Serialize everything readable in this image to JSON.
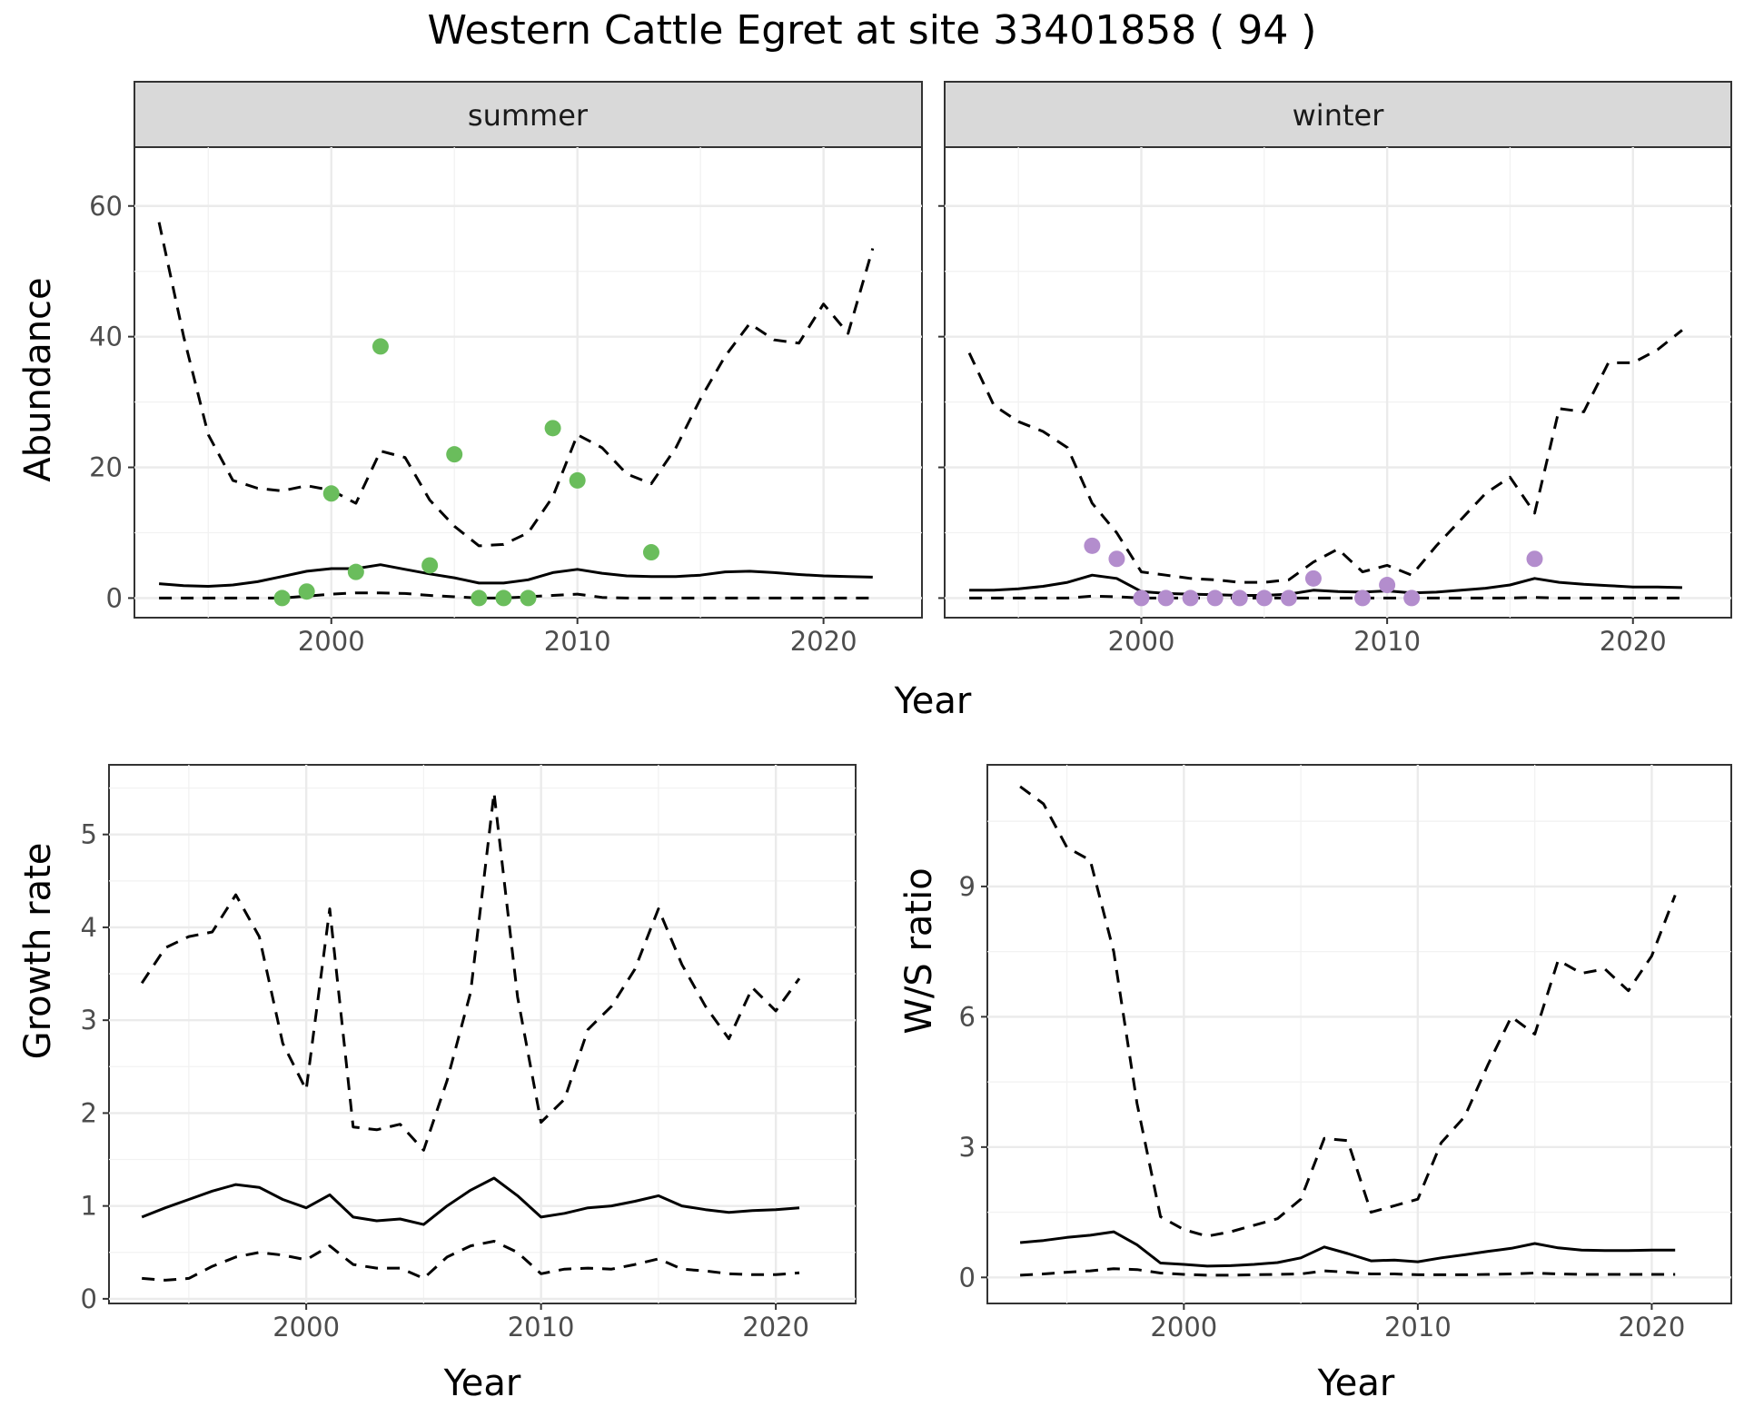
{
  "title": "Western Cattle Egret at site 33401858 ( 94 )",
  "colors": {
    "summer_points": "#6abd5c",
    "winter_points": "#b38dcd",
    "lines": "#000000"
  },
  "chart_data": [
    {
      "type": "line",
      "facet": "summer",
      "xlabel": "Year",
      "ylabel": "Abundance",
      "xlim": [
        1992,
        2024
      ],
      "ylim": [
        -3,
        69
      ],
      "xticks": [
        2000,
        2010,
        2020
      ],
      "yticks": [
        0,
        20,
        40,
        60
      ],
      "grid": true,
      "x": [
        1993,
        1994,
        1995,
        1996,
        1997,
        1998,
        1999,
        2000,
        2001,
        2002,
        2003,
        2004,
        2005,
        2006,
        2007,
        2008,
        2009,
        2010,
        2011,
        2012,
        2013,
        2014,
        2015,
        2016,
        2017,
        2018,
        2019,
        2020,
        2021,
        2022
      ],
      "series": [
        {
          "style": "dashed",
          "values": [
            57.5,
            40,
            25,
            18,
            16.8,
            16.4,
            17.2,
            16.5,
            14.5,
            22.5,
            21.5,
            15,
            11,
            8,
            8.2,
            10,
            15.5,
            25,
            23,
            19,
            17.5,
            23,
            30.5,
            37,
            42,
            39.5,
            39,
            45,
            40.5,
            53.5
          ]
        },
        {
          "style": "solid",
          "values": [
            2.2,
            1.9,
            1.8,
            2,
            2.5,
            3.3,
            4.1,
            4.5,
            4.5,
            5.1,
            4.4,
            3.7,
            3.1,
            2.3,
            2.3,
            2.8,
            3.9,
            4.4,
            3.8,
            3.4,
            3.3,
            3.3,
            3.5,
            4,
            4.1,
            3.9,
            3.6,
            3.4,
            3.3,
            3.2
          ]
        },
        {
          "style": "dashed",
          "values": [
            0,
            0,
            0,
            0,
            0,
            0,
            0.3,
            0.6,
            0.8,
            0.8,
            0.7,
            0.4,
            0.2,
            0,
            0,
            0.2,
            0.4,
            0.6,
            0.1,
            0,
            0,
            0,
            0,
            0,
            0,
            0,
            0,
            0,
            0,
            0
          ]
        }
      ],
      "points": {
        "x": [
          1998,
          1999,
          2000,
          2001,
          2002,
          2004,
          2005,
          2006,
          2007,
          2008,
          2009,
          2010,
          2013
        ],
        "y": [
          0,
          1,
          16,
          4,
          38.5,
          5,
          22,
          0,
          0,
          0,
          26,
          18,
          7
        ]
      }
    },
    {
      "type": "line",
      "facet": "winter",
      "xlabel": "Year",
      "ylabel": "Abundance",
      "xlim": [
        1992,
        2024
      ],
      "ylim": [
        -3,
        69
      ],
      "xticks": [
        2000,
        2010,
        2020
      ],
      "yticks": [
        0,
        20,
        40,
        60
      ],
      "grid": true,
      "x": [
        1993,
        1994,
        1995,
        1996,
        1997,
        1998,
        1999,
        2000,
        2001,
        2002,
        2003,
        2004,
        2005,
        2006,
        2007,
        2008,
        2009,
        2010,
        2011,
        2012,
        2013,
        2014,
        2015,
        2016,
        2017,
        2018,
        2019,
        2020,
        2021,
        2022
      ],
      "series": [
        {
          "style": "dashed",
          "values": [
            37.5,
            29.5,
            27,
            25.5,
            23,
            14.5,
            10,
            4,
            3.5,
            3,
            2.8,
            2.4,
            2.4,
            2.8,
            5.5,
            7.5,
            4,
            5,
            3.5,
            8,
            12,
            16,
            18.5,
            13,
            29,
            28.5,
            36,
            36,
            38,
            41
          ]
        },
        {
          "style": "solid",
          "values": [
            1.2,
            1.2,
            1.4,
            1.8,
            2.4,
            3.5,
            3,
            1,
            0.7,
            0.6,
            0.5,
            0.4,
            0.4,
            0.6,
            1.2,
            1,
            0.9,
            1.1,
            0.8,
            0.9,
            1.2,
            1.5,
            2,
            3,
            2.4,
            2.1,
            1.9,
            1.7,
            1.7,
            1.6
          ]
        },
        {
          "style": "dashed",
          "values": [
            0,
            0,
            0,
            0,
            0,
            0.3,
            0.2,
            0,
            0,
            0,
            0,
            0,
            0,
            0,
            0,
            0,
            0,
            0,
            0,
            0,
            0,
            0,
            0,
            0.1,
            0,
            0,
            0,
            0,
            0,
            0
          ]
        }
      ],
      "points": {
        "x": [
          1998,
          1999,
          2000,
          2001,
          2002,
          2003,
          2004,
          2005,
          2006,
          2007,
          2009,
          2010,
          2011,
          2016
        ],
        "y": [
          8,
          6,
          0,
          0,
          0,
          0,
          0,
          0,
          0,
          3,
          0,
          2,
          0,
          6
        ]
      }
    },
    {
      "type": "line",
      "xlabel": "Year",
      "ylabel": "Growth rate",
      "xlim": [
        1991.6,
        2023.4
      ],
      "ylim": [
        -0.05,
        5.75
      ],
      "xticks": [
        2000,
        2010,
        2020
      ],
      "yticks": [
        0,
        1,
        2,
        3,
        4,
        5
      ],
      "grid": true,
      "x": [
        1993,
        1994,
        1995,
        1996,
        1997,
        1998,
        1999,
        2000,
        2001,
        2002,
        2003,
        2004,
        2005,
        2006,
        2007,
        2008,
        2009,
        2010,
        2011,
        2012,
        2013,
        2014,
        2015,
        2016,
        2017,
        2018,
        2019,
        2020,
        2021
      ],
      "series": [
        {
          "style": "dashed",
          "values": [
            3.4,
            3.78,
            3.9,
            3.95,
            4.35,
            3.9,
            2.75,
            2.25,
            4.2,
            1.85,
            1.82,
            1.88,
            1.6,
            2.35,
            3.3,
            5.45,
            3.25,
            1.9,
            2.15,
            2.9,
            3.15,
            3.55,
            4.2,
            3.6,
            3.15,
            2.8,
            3.35,
            3.1,
            3.45
          ]
        },
        {
          "style": "solid",
          "values": [
            0.88,
            0.98,
            1.07,
            1.16,
            1.23,
            1.2,
            1.07,
            0.98,
            1.12,
            0.88,
            0.84,
            0.86,
            0.8,
            1,
            1.17,
            1.3,
            1.11,
            0.88,
            0.92,
            0.98,
            1,
            1.05,
            1.11,
            1,
            0.96,
            0.93,
            0.95,
            0.96,
            0.98
          ]
        },
        {
          "style": "dashed",
          "values": [
            0.22,
            0.2,
            0.22,
            0.35,
            0.45,
            0.5,
            0.47,
            0.42,
            0.57,
            0.37,
            0.33,
            0.33,
            0.22,
            0.45,
            0.57,
            0.62,
            0.5,
            0.27,
            0.32,
            0.33,
            0.32,
            0.37,
            0.43,
            0.32,
            0.3,
            0.27,
            0.26,
            0.26,
            0.28
          ]
        }
      ]
    },
    {
      "type": "line",
      "xlabel": "Year",
      "ylabel": "W/S ratio",
      "xlim": [
        1991.6,
        2023.4
      ],
      "ylim": [
        -0.6,
        11.8
      ],
      "xticks": [
        2000,
        2010,
        2020
      ],
      "yticks": [
        0,
        3,
        6,
        9
      ],
      "grid": true,
      "x": [
        1993,
        1994,
        1995,
        1996,
        1997,
        1998,
        1999,
        2000,
        2001,
        2002,
        2003,
        2004,
        2005,
        2006,
        2007,
        2008,
        2009,
        2010,
        2011,
        2012,
        2013,
        2014,
        2015,
        2016,
        2017,
        2018,
        2019,
        2020,
        2021
      ],
      "series": [
        {
          "style": "dashed",
          "values": [
            11.3,
            10.9,
            9.9,
            9.6,
            7.5,
            4,
            1.4,
            1.1,
            0.95,
            1.05,
            1.2,
            1.35,
            1.8,
            3.2,
            3.15,
            1.5,
            1.65,
            1.8,
            3.1,
            3.7,
            4.9,
            6,
            5.6,
            7.3,
            7,
            7.1,
            6.6,
            7.4,
            8.8
          ]
        },
        {
          "style": "solid",
          "values": [
            0.8,
            0.85,
            0.92,
            0.97,
            1.05,
            0.75,
            0.33,
            0.3,
            0.26,
            0.27,
            0.3,
            0.34,
            0.45,
            0.7,
            0.55,
            0.38,
            0.4,
            0.36,
            0.45,
            0.52,
            0.6,
            0.67,
            0.78,
            0.68,
            0.63,
            0.62,
            0.62,
            0.63,
            0.63
          ]
        },
        {
          "style": "dashed",
          "values": [
            0.05,
            0.08,
            0.12,
            0.15,
            0.2,
            0.18,
            0.1,
            0.07,
            0.05,
            0.05,
            0.06,
            0.07,
            0.08,
            0.15,
            0.12,
            0.08,
            0.08,
            0.06,
            0.06,
            0.06,
            0.07,
            0.08,
            0.1,
            0.08,
            0.07,
            0.07,
            0.07,
            0.07,
            0.07
          ]
        }
      ]
    }
  ]
}
